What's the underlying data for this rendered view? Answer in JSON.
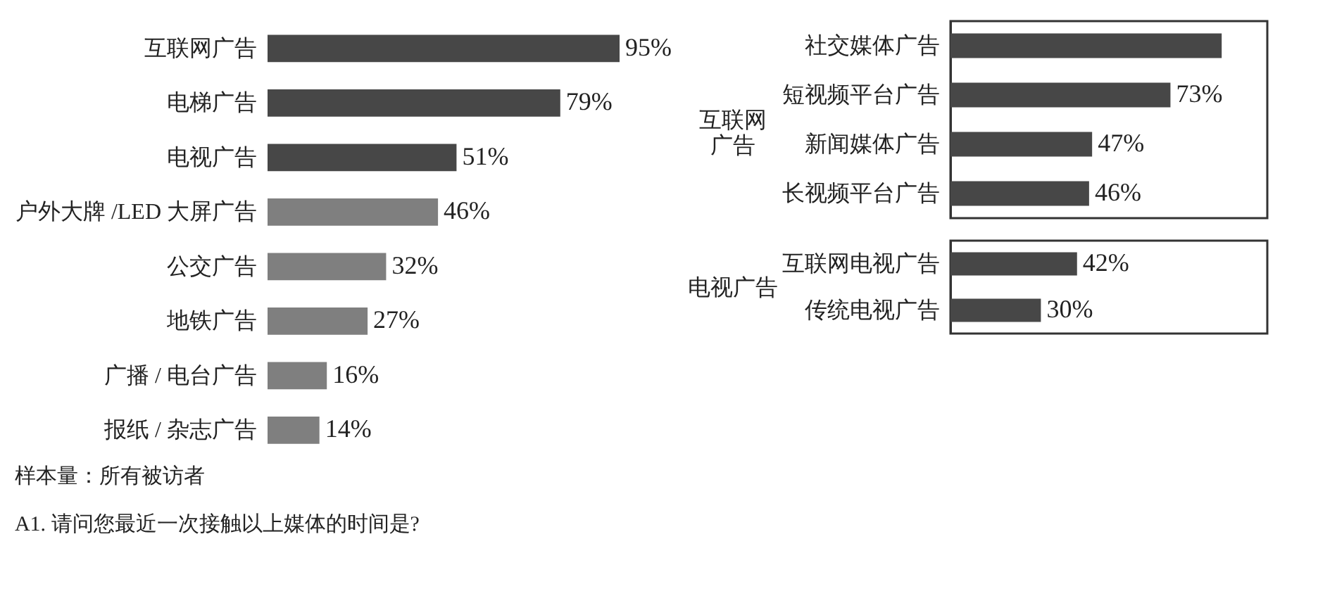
{
  "chart_data": [
    {
      "type": "bar",
      "orientation": "horizontal",
      "categories": [
        "互联网广告",
        "电梯广告",
        "电视广告",
        "户外大牌 /LED 大屏广告",
        "公交广告",
        "地铁广告",
        "广播 / 电台广告",
        "报纸 / 杂志广告"
      ],
      "values": [
        95,
        79,
        51,
        46,
        32,
        27,
        16,
        14
      ],
      "colors": [
        "#474747",
        "#474747",
        "#474747",
        "#7f7f7f",
        "#7f7f7f",
        "#7f7f7f",
        "#7f7f7f",
        "#7f7f7f"
      ],
      "value_labels": [
        "95%",
        "79%",
        "51%",
        "46%",
        "32%",
        "27%",
        "16%",
        "14%"
      ],
      "annotations": [
        "样本量：所有被访者",
        "A1. 请问您最近一次接触以上媒体的时间是?"
      ]
    },
    {
      "type": "bar",
      "orientation": "horizontal",
      "ylabel": "互联网广告",
      "categories": [
        "社交媒体广告",
        "短视频平台广告",
        "新闻媒体广告",
        "长视频平台广告"
      ],
      "values": [
        90,
        73,
        47,
        46
      ],
      "colors": [
        "#474747",
        "#474747",
        "#474747",
        "#474747"
      ],
      "value_labels": [
        null,
        "73%",
        "47%",
        "46%"
      ]
    },
    {
      "type": "bar",
      "orientation": "horizontal",
      "ylabel": "电视广告",
      "categories": [
        "互联网电视广告",
        "传统电视广告"
      ],
      "values": [
        42,
        30
      ],
      "colors": [
        "#474747",
        "#474747"
      ],
      "value_labels": [
        "42%",
        "30%"
      ]
    }
  ]
}
